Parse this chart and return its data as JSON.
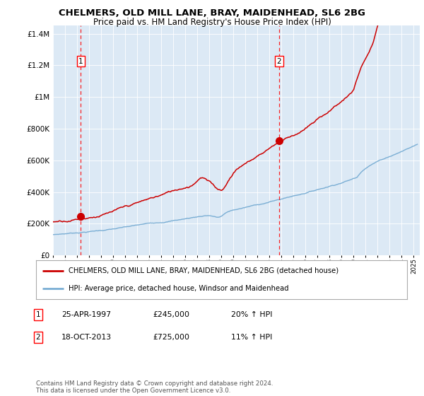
{
  "title1": "CHELMERS, OLD MILL LANE, BRAY, MAIDENHEAD, SL6 2BG",
  "title2": "Price paid vs. HM Land Registry's House Price Index (HPI)",
  "bg_color": "#dce9f5",
  "ylim": [
    0,
    1450000
  ],
  "yticks": [
    0,
    200000,
    400000,
    600000,
    800000,
    1000000,
    1200000,
    1400000
  ],
  "ytick_labels": [
    "£0",
    "£200K",
    "£400K",
    "£600K",
    "£800K",
    "£1M",
    "£1.2M",
    "£1.4M"
  ],
  "xlim_start": 1995.0,
  "xlim_end": 2025.5,
  "xtick_years": [
    1995,
    1996,
    1997,
    1998,
    1999,
    2000,
    2001,
    2002,
    2003,
    2004,
    2005,
    2006,
    2007,
    2008,
    2009,
    2010,
    2011,
    2012,
    2013,
    2014,
    2015,
    2016,
    2017,
    2018,
    2019,
    2020,
    2021,
    2022,
    2023,
    2024,
    2025
  ],
  "legend_line1": "CHELMERS, OLD MILL LANE, BRAY, MAIDENHEAD, SL6 2BG (detached house)",
  "legend_line2": "HPI: Average price, detached house, Windsor and Maidenhead",
  "sale1_date": 1997.32,
  "sale1_price": 245000,
  "sale1_label": "1",
  "sale2_date": 2013.8,
  "sale2_price": 725000,
  "sale2_label": "2",
  "annot1_date": "25-APR-1997",
  "annot1_price": "£245,000",
  "annot1_hpi": "20% ↑ HPI",
  "annot2_date": "18-OCT-2013",
  "annot2_price": "£725,000",
  "annot2_hpi": "11% ↑ HPI",
  "footer": "Contains HM Land Registry data © Crown copyright and database right 2024.\nThis data is licensed under the Open Government Licence v3.0.",
  "red_line_color": "#cc0000",
  "blue_line_color": "#7aaed4",
  "red_dot_color": "#cc0000"
}
